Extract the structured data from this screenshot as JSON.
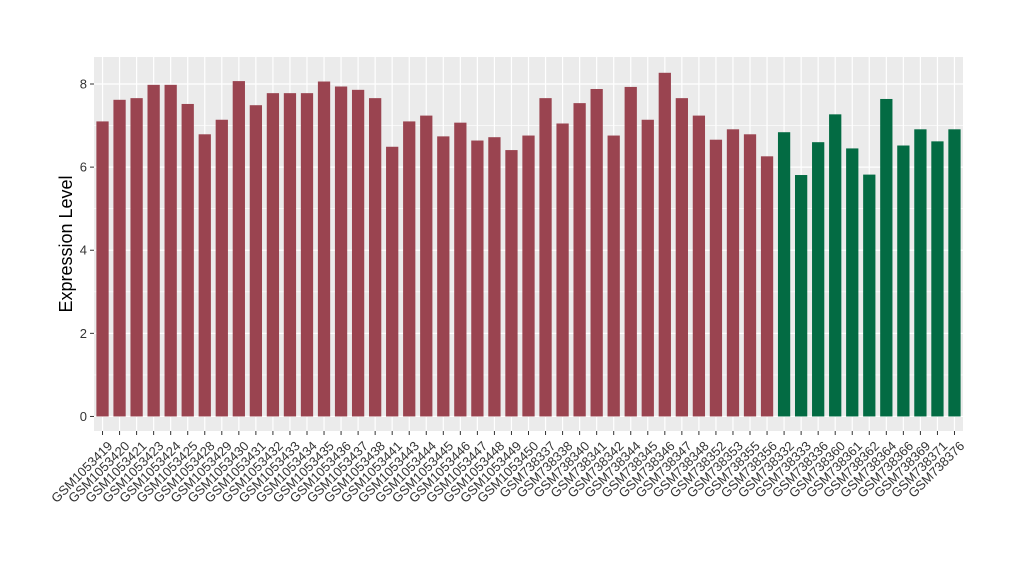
{
  "chart_data": {
    "type": "bar",
    "title": "",
    "xlabel": "",
    "ylabel": "Expression Level",
    "ylim": [
      -0.35,
      8.65
    ],
    "yticks": [
      0,
      2,
      4,
      6,
      8
    ],
    "grid": true,
    "legend": "none",
    "colors": {
      "group1": "#9A4450",
      "group2": "#036B43",
      "panel": "#EBEBEB",
      "grid": "#FFFFFF"
    },
    "categories": [
      "GSM1053419",
      "GSM1053420",
      "GSM1053421",
      "GSM1053423",
      "GSM1053424",
      "GSM1053425",
      "GSM1053428",
      "GSM1053429",
      "GSM1053430",
      "GSM1053431",
      "GSM1053432",
      "GSM1053433",
      "GSM1053434",
      "GSM1053435",
      "GSM1053436",
      "GSM1053437",
      "GSM1053438",
      "GSM1053441",
      "GSM1053443",
      "GSM1053444",
      "GSM1053445",
      "GSM1053446",
      "GSM1053447",
      "GSM1053448",
      "GSM1053449",
      "GSM1053450",
      "GSM738337",
      "GSM738338",
      "GSM738340",
      "GSM738341",
      "GSM738342",
      "GSM738344",
      "GSM738345",
      "GSM738346",
      "GSM738347",
      "GSM738348",
      "GSM738352",
      "GSM738353",
      "GSM738355",
      "GSM738356",
      "GSM738332",
      "GSM738333",
      "GSM738336",
      "GSM738360",
      "GSM738361",
      "GSM738362",
      "GSM738364",
      "GSM738366",
      "GSM738369",
      "GSM738371",
      "GSM738376"
    ],
    "values": [
      7.1,
      7.62,
      7.66,
      7.98,
      7.98,
      7.52,
      6.79,
      7.14,
      8.07,
      7.49,
      7.78,
      7.78,
      7.78,
      8.06,
      7.94,
      7.86,
      7.66,
      6.49,
      7.1,
      7.24,
      6.74,
      7.07,
      6.64,
      6.72,
      6.41,
      6.76,
      7.66,
      7.05,
      7.54,
      7.88,
      6.76,
      7.93,
      7.14,
      8.27,
      7.66,
      7.24,
      6.66,
      6.91,
      6.79,
      6.26,
      6.84,
      5.81,
      6.6,
      7.27,
      6.45,
      5.82,
      7.64,
      6.52,
      6.91,
      6.62,
      6.91
    ],
    "groups": [
      1,
      1,
      1,
      1,
      1,
      1,
      1,
      1,
      1,
      1,
      1,
      1,
      1,
      1,
      1,
      1,
      1,
      1,
      1,
      1,
      1,
      1,
      1,
      1,
      1,
      1,
      1,
      1,
      1,
      1,
      1,
      1,
      1,
      1,
      1,
      1,
      1,
      1,
      1,
      1,
      2,
      2,
      2,
      2,
      2,
      2,
      2,
      2,
      2,
      2,
      2
    ]
  }
}
